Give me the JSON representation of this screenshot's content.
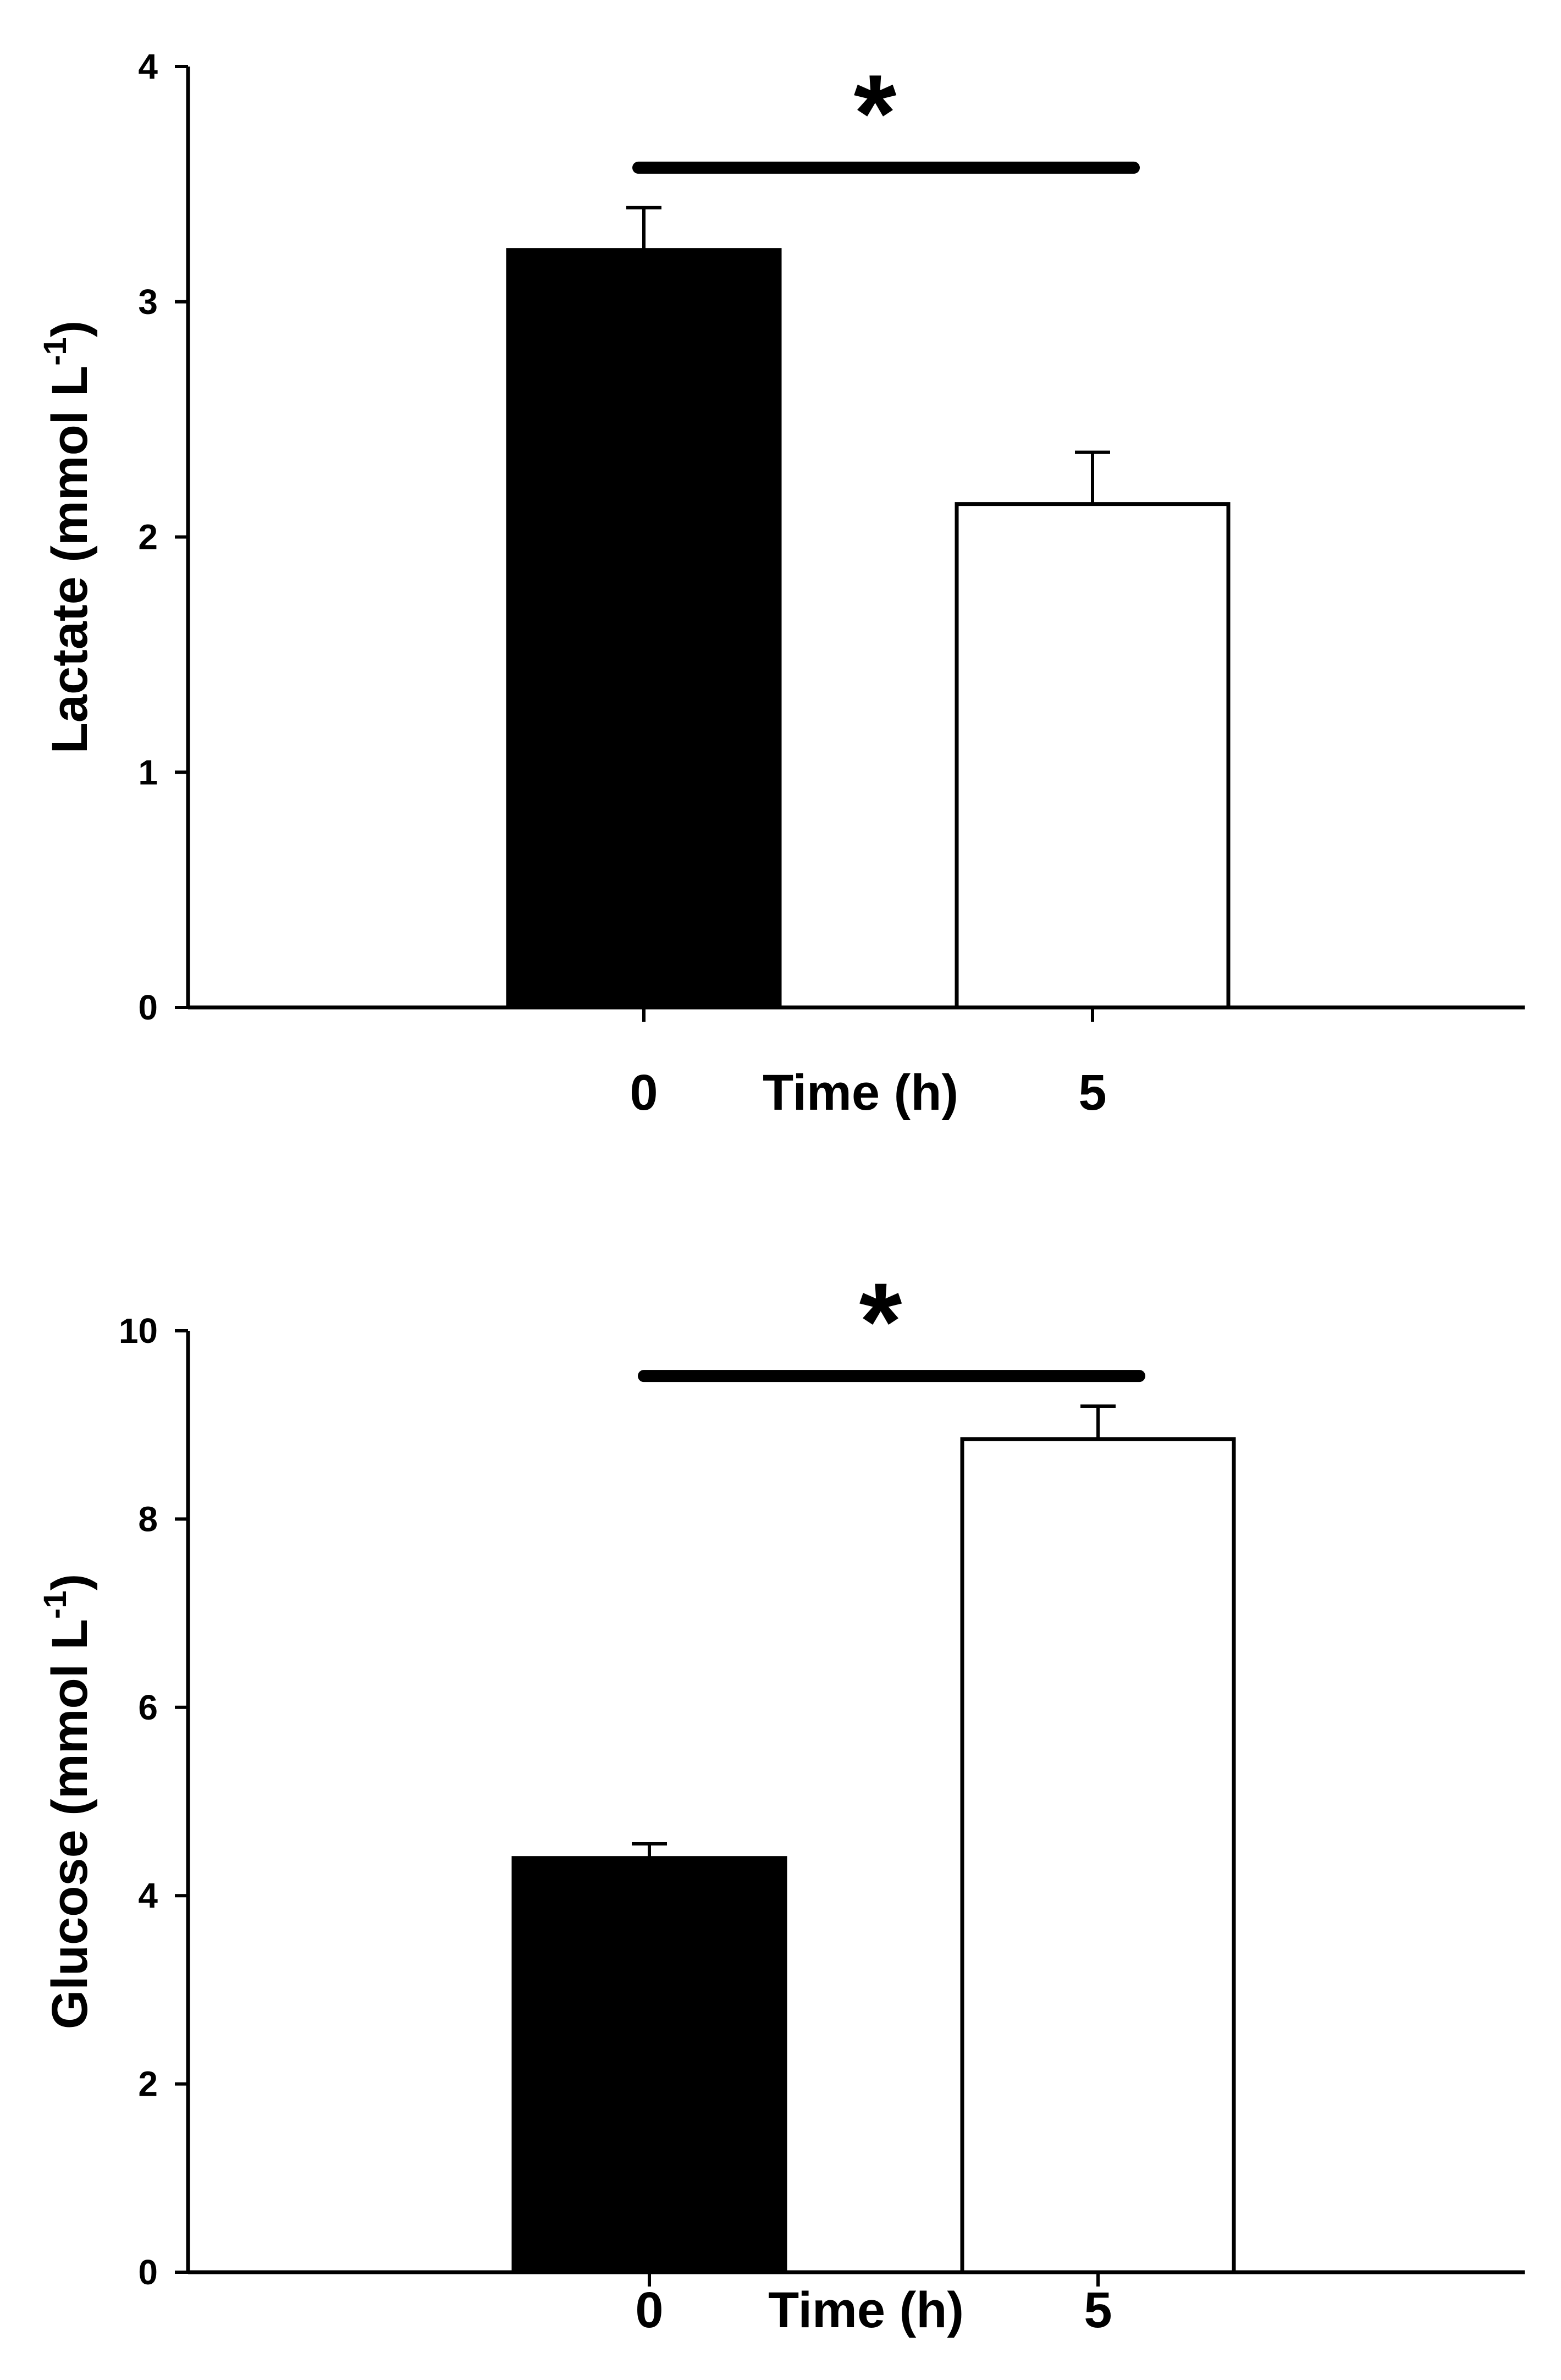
{
  "chart_data": [
    {
      "type": "bar",
      "categories": [
        "0",
        "5"
      ],
      "values": [
        3.22,
        2.14
      ],
      "errors": [
        0.18,
        0.22
      ],
      "bar_fill": [
        "#000000",
        "#ffffff"
      ],
      "title": "",
      "xlabel": "Time (h)",
      "ylabel": "Lactate (mmol L",
      "ylabel_superscript": "-1",
      "ylabel_close": ")",
      "ylim": [
        0,
        4
      ],
      "yticks": [
        0,
        1,
        2,
        3,
        4
      ],
      "ytick_labels": [
        "0",
        "1",
        "2",
        "3",
        "4"
      ],
      "grid": false,
      "significance": {
        "label": "*",
        "y": 3.57,
        "between": [
          "0",
          "5"
        ]
      }
    },
    {
      "type": "bar",
      "categories": [
        "0",
        "5"
      ],
      "values": [
        4.4,
        8.85
      ],
      "errors": [
        0.15,
        0.35
      ],
      "bar_fill": [
        "#000000",
        "#ffffff"
      ],
      "title": "",
      "xlabel": "Time (h)",
      "ylabel": "Glucose (mmol L",
      "ylabel_superscript": "-1",
      "ylabel_close": ")",
      "ylim": [
        0,
        10
      ],
      "yticks": [
        0,
        2,
        4,
        6,
        8,
        10
      ],
      "ytick_labels": [
        "0",
        "2",
        "4",
        "6",
        "8",
        "10"
      ],
      "grid": false,
      "significance": {
        "label": "*",
        "y": 9.52,
        "between": [
          "0",
          "5"
        ]
      }
    }
  ]
}
